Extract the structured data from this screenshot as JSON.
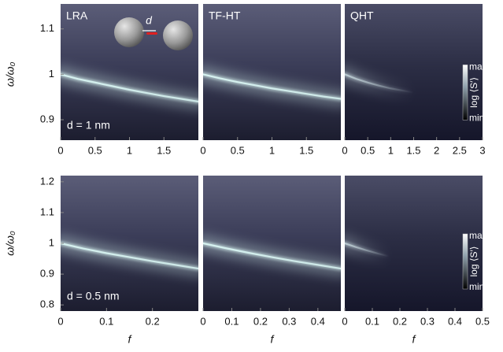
{
  "chart_data": [
    {
      "type": "heatmap",
      "title": "LRA",
      "annotation": "d = 1 nm",
      "inset_label": "d",
      "ylabel": "ω/ω₀",
      "xlim": [
        0,
        2
      ],
      "xticks": [
        0,
        0.5,
        1,
        1.5
      ],
      "ylim": [
        0.855,
        1.155
      ],
      "yticks": [
        0.9,
        1,
        1.1
      ],
      "ridge": {
        "color": "#d6f2f0",
        "x": [
          0,
          0.25,
          0.5,
          0.75,
          1,
          1.25,
          1.5,
          1.75,
          2
        ],
        "values": [
          1,
          0.99,
          0.982,
          0.974,
          0.966,
          0.959,
          0.952,
          0.946,
          0.94
        ]
      }
    },
    {
      "type": "heatmap",
      "title": "TF-HT",
      "xlim": [
        0,
        2
      ],
      "xticks": [
        0,
        0.5,
        1,
        1.5
      ],
      "ylim": [
        0.855,
        1.155
      ],
      "ridge": {
        "color": "#d6f2f0",
        "x": [
          0,
          0.25,
          0.5,
          0.75,
          1,
          1.25,
          1.5,
          1.75,
          2
        ],
        "values": [
          1,
          0.991,
          0.983,
          0.976,
          0.969,
          0.963,
          0.957,
          0.951,
          0.946
        ]
      }
    },
    {
      "type": "heatmap",
      "title": "QHT",
      "colorbar": {
        "max": "max",
        "min": "min",
        "label": "log ⟨S′⟩"
      },
      "xlim": [
        0,
        3
      ],
      "xticks": [
        0,
        0.5,
        1,
        1.5,
        2,
        2.5,
        3
      ],
      "ylim": [
        0.855,
        1.155
      ],
      "ridge": {
        "color": "#b9c9d0",
        "x": [
          0,
          0.25,
          0.5,
          0.75,
          1,
          1.5
        ],
        "values": [
          1,
          0.99,
          0.982,
          0.975,
          0.969,
          0.96
        ]
      }
    },
    {
      "type": "heatmap",
      "annotation": "d = 0.5 nm",
      "ylabel": "ω/ω₀",
      "xlabel": "f",
      "xlim": [
        0,
        0.3
      ],
      "xticks": [
        0,
        0.1,
        0.2
      ],
      "ylim": [
        0.78,
        1.22
      ],
      "yticks": [
        0.8,
        0.9,
        1,
        1.1,
        1.2
      ],
      "ridge": {
        "color": "#d6f2f0",
        "x": [
          0,
          0.05,
          0.1,
          0.15,
          0.2,
          0.25,
          0.3
        ],
        "values": [
          1,
          0.983,
          0.968,
          0.955,
          0.942,
          0.93,
          0.918
        ]
      }
    },
    {
      "type": "heatmap",
      "xlabel": "f",
      "xlim": [
        0,
        0.48
      ],
      "xticks": [
        0,
        0.1,
        0.2,
        0.3,
        0.4
      ],
      "ylim": [
        0.78,
        1.22
      ],
      "ridge": {
        "color": "#d6f2f0",
        "x": [
          0,
          0.08,
          0.16,
          0.24,
          0.32,
          0.4,
          0.48
        ],
        "values": [
          1,
          0.984,
          0.969,
          0.955,
          0.942,
          0.93,
          0.918
        ]
      }
    },
    {
      "type": "heatmap",
      "xlabel": "f",
      "colorbar": {
        "max": "max",
        "min": "min",
        "label": "log ⟨S′⟩"
      },
      "xlim": [
        0,
        0.5
      ],
      "xticks": [
        0,
        0.1,
        0.2,
        0.3,
        0.4,
        0.5
      ],
      "ylim": [
        0.78,
        1.22
      ],
      "ridge": {
        "color": "#b9c9d0",
        "x": [
          0,
          0.04,
          0.08,
          0.12,
          0.16
        ],
        "values": [
          1,
          0.988,
          0.977,
          0.967,
          0.958
        ]
      }
    }
  ]
}
